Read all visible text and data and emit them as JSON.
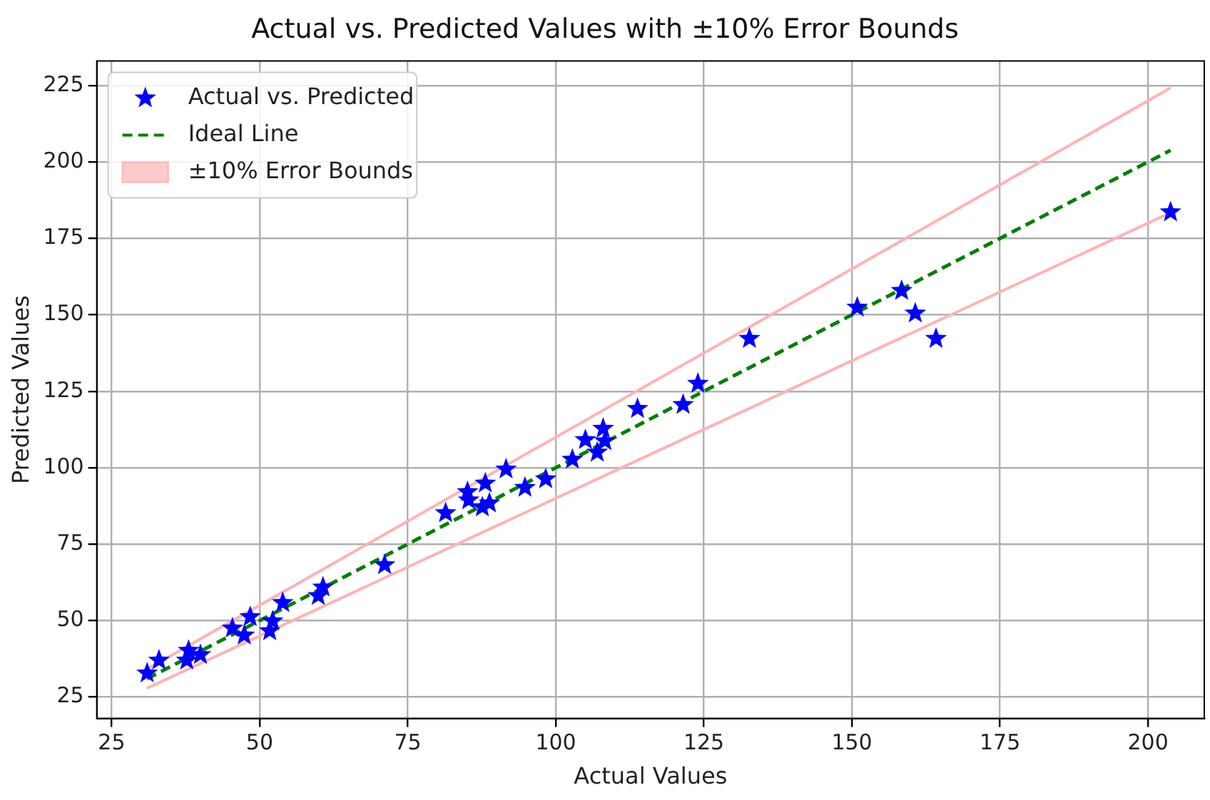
{
  "chart_data": {
    "type": "scatter",
    "title": "Actual vs. Predicted Values with ±10% Error Bounds",
    "xlabel": "Actual Values",
    "ylabel": "Predicted Values",
    "xlim": [
      22.5,
      209.5
    ],
    "ylim": [
      18,
      233
    ],
    "xticks": [
      25,
      50,
      75,
      100,
      125,
      150,
      175,
      200
    ],
    "yticks": [
      25,
      50,
      75,
      100,
      125,
      150,
      175,
      200,
      225
    ],
    "grid": true,
    "legend": "top left",
    "series": [
      {
        "type": "scatter",
        "name": "Actual vs. Predicted",
        "color": "#0000ff",
        "marker": "star",
        "x": [
          31,
          33,
          37.7,
          38,
          40,
          45.4,
          47.4,
          48.4,
          51.7,
          52.2,
          53.9,
          59.9,
          60.7,
          71.1,
          81.4,
          85.1,
          85.3,
          87.6,
          88.1,
          88.8,
          91.6,
          94.8,
          98.3,
          102.8,
          105,
          107,
          108,
          108.3,
          113.8,
          121.5,
          124,
          132.7,
          150.9,
          158.4,
          160.7,
          164.2,
          203.8
        ],
        "values": [
          32.8,
          37,
          37,
          40.2,
          38.8,
          47.5,
          45.2,
          51.2,
          46.6,
          49.8,
          55.8,
          58.1,
          60.9,
          68.2,
          85.2,
          92.1,
          89.4,
          87.1,
          94.9,
          88.4,
          99.5,
          93.5,
          96.3,
          102.7,
          109.1,
          105,
          112.8,
          108.7,
          119.3,
          120.6,
          127.5,
          142.2,
          152.4,
          157.9,
          150.5,
          142.2,
          183.6
        ]
      },
      {
        "type": "line",
        "name": "Ideal Line",
        "color": "#008000",
        "line_style": "dashed",
        "marker": "none",
        "x": [
          31,
          203.8
        ],
        "values": [
          31,
          203.8
        ]
      },
      {
        "type": "line",
        "name": "±10% Error Bounds",
        "color": "#ffb3b3",
        "x": [
          31,
          203.8
        ],
        "values": [
          34.1,
          224.2
        ]
      },
      {
        "type": "line",
        "color": "#ffb3b3",
        "x": [
          31,
          203.8
        ],
        "values": [
          27.9,
          183.4
        ]
      }
    ]
  }
}
